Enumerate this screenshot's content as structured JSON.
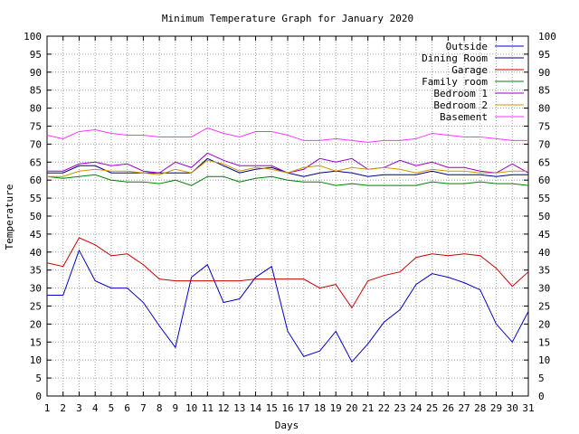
{
  "chart_data": {
    "type": "line",
    "title": "Minimum Temperature Graph for January 2020",
    "xlabel": "Days",
    "ylabel": "Temperature",
    "xlim": [
      1,
      31
    ],
    "ylim": [
      0,
      100
    ],
    "x": [
      1,
      2,
      3,
      4,
      5,
      6,
      7,
      8,
      9,
      10,
      11,
      12,
      13,
      14,
      15,
      16,
      17,
      18,
      19,
      20,
      21,
      22,
      23,
      24,
      25,
      26,
      27,
      28,
      29,
      30,
      31
    ],
    "xticks": [
      "1",
      "2",
      "3",
      "4",
      "5",
      "6",
      "7",
      "8",
      "9",
      "10",
      "11",
      "12",
      "13",
      "14",
      "15",
      "16",
      "17",
      "18",
      "19",
      "20",
      "21",
      "22",
      "23",
      "24",
      "25",
      "26",
      "27",
      "28",
      "29",
      "30",
      "31"
    ],
    "yticks": [
      "0",
      "5",
      "10",
      "15",
      "20",
      "25",
      "30",
      "35",
      "40",
      "45",
      "50",
      "55",
      "60",
      "65",
      "70",
      "75",
      "80",
      "85",
      "90",
      "95",
      "100"
    ],
    "grid": true,
    "legend_position": "top-right",
    "series": [
      {
        "name": "Outside",
        "color": "#0000cc",
        "values": [
          28,
          28,
          40.5,
          32,
          30,
          30,
          26,
          19.5,
          13.5,
          33,
          36.5,
          26,
          27,
          33,
          36,
          18,
          11,
          12.5,
          18,
          9.5,
          14.5,
          20.5,
          24,
          31,
          34,
          33,
          31.5,
          29.5,
          20,
          15,
          23.5
        ]
      },
      {
        "name": "Dining Room",
        "color": "#000080",
        "values": [
          62,
          62,
          64,
          64,
          62,
          62,
          62,
          62,
          62,
          62,
          66,
          64,
          62,
          63,
          63.5,
          62,
          61,
          62,
          62.5,
          62,
          61,
          61.5,
          61.5,
          61.5,
          62.5,
          61.5,
          61.5,
          61.5,
          61,
          61.5,
          61.5
        ]
      },
      {
        "name": "Garage",
        "color": "#cc0000",
        "values": [
          37,
          36,
          44,
          42,
          39,
          39.5,
          36.5,
          32.5,
          32,
          32,
          32,
          32,
          32,
          32.5,
          32.5,
          32.5,
          32.5,
          30,
          31,
          24.5,
          32,
          33.5,
          34.5,
          38.5,
          39.5,
          39,
          39.5,
          39,
          35.5,
          30.5,
          34.5
        ]
      },
      {
        "name": "Family room",
        "color": "#008000",
        "values": [
          61,
          60.5,
          61,
          61.5,
          60,
          59.5,
          59.5,
          59,
          60,
          58.5,
          61,
          61,
          59.5,
          60.5,
          61,
          60,
          59.5,
          59.5,
          58.5,
          59,
          58.5,
          58.5,
          58.5,
          58.5,
          59.5,
          59,
          59,
          59.5,
          59,
          59,
          58.5
        ]
      },
      {
        "name": "Bedroom 1",
        "color": "#9900cc",
        "values": [
          62.5,
          62.5,
          64.5,
          65,
          64,
          64.5,
          62.5,
          62,
          65,
          63.5,
          67.5,
          65.5,
          64,
          64,
          64,
          62,
          63,
          66,
          65,
          66,
          63,
          63.5,
          65.5,
          64,
          65,
          63.5,
          63.5,
          62.5,
          62,
          64.5,
          62
        ]
      },
      {
        "name": "Bedroom 2",
        "color": "#cc9900",
        "values": [
          61,
          61,
          62.5,
          63,
          62.5,
          62.5,
          62,
          61.5,
          63,
          62,
          65.5,
          64.5,
          62.5,
          63.5,
          63,
          62,
          63.5,
          64,
          62.5,
          63.5,
          63,
          63.5,
          63,
          62,
          63,
          62.5,
          62.5,
          62,
          62,
          62.5,
          62.5
        ]
      },
      {
        "name": "Basement",
        "color": "#ff33ff",
        "values": [
          72.5,
          71.5,
          73.5,
          74,
          73,
          72.5,
          72.5,
          72,
          72,
          72,
          74.5,
          73,
          72,
          73.5,
          73.5,
          72.5,
          71,
          71,
          71.5,
          71,
          70.5,
          71,
          71,
          71.5,
          73,
          72.5,
          72,
          72,
          71.5,
          71,
          71
        ]
      }
    ]
  }
}
